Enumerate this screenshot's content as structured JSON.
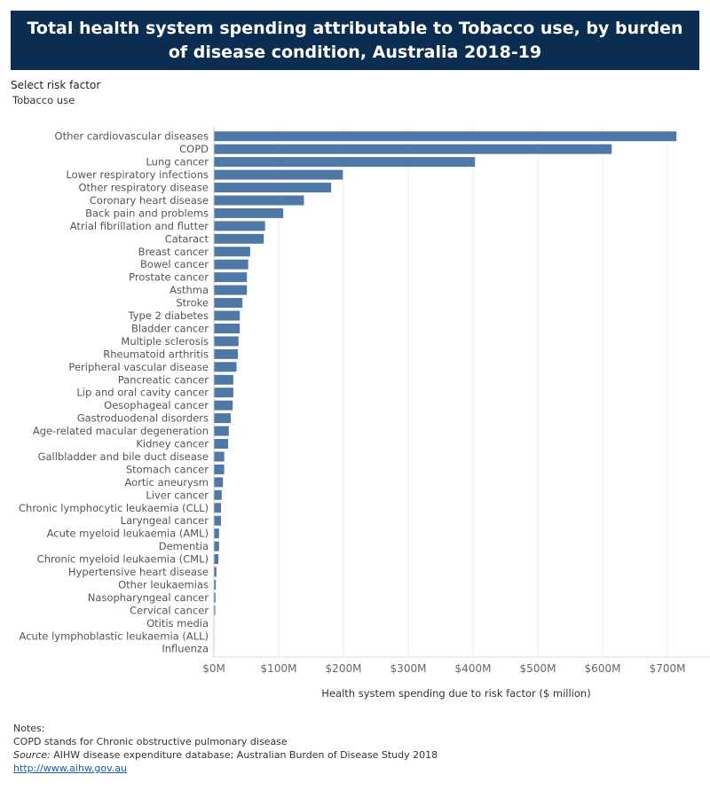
{
  "header": {
    "title": "Total health system spending attributable to Tobacco use, by burden of disease condition, Australia 2018-19"
  },
  "filter": {
    "label": "Select risk factor",
    "value": "Tobacco use"
  },
  "chart_data": {
    "type": "bar",
    "orientation": "horizontal",
    "title": "Total health system spending attributable to Tobacco use, by burden of disease condition, Australia 2018-19",
    "xlabel": "Health system spending due to risk factor ($ million)",
    "ylabel": "",
    "xlim": [
      0,
      735
    ],
    "grid": true,
    "x_ticks": [
      0,
      100,
      200,
      300,
      400,
      500,
      600,
      700
    ],
    "x_tick_labels": [
      "$0M",
      "$100M",
      "$200M",
      "$300M",
      "$400M",
      "$500M",
      "$600M",
      "$700M"
    ],
    "bar_color": "#4e79a7",
    "categories": [
      "Other cardiovascular diseases",
      "COPD",
      "Lung cancer",
      "Lower respiratory infections",
      "Other respiratory disease",
      "Coronary heart disease",
      "Back pain and problems",
      "Atrial fibrillation and flutter",
      "Cataract",
      "Breast cancer",
      "Bowel cancer",
      "Prostate cancer",
      "Asthma",
      "Stroke",
      "Type 2 diabetes",
      "Bladder cancer",
      "Multiple sclerosis",
      "Rheumatoid arthritis",
      "Peripheral vascular disease",
      "Pancreatic cancer",
      "Lip and oral cavity cancer",
      "Oesophageal cancer",
      "Gastroduodenal disorders",
      "Age-related macular degeneration",
      "Kidney cancer",
      "Gallbladder and bile duct disease",
      "Stomach cancer",
      "Aortic aneurysm",
      "Liver cancer",
      "Chronic lymphocytic leukaemia (CLL)",
      "Laryngeal cancer",
      "Acute myeloid leukaemia (AML)",
      "Dementia",
      "Chronic myeloid leukaemia (CML)",
      "Hypertensive heart disease",
      "Other leukaemias",
      "Nasopharyngeal cancer",
      "Cervical cancer",
      "Otitis media",
      "Acute lymphoblastic leukaemia (ALL)",
      "Influenza"
    ],
    "values": [
      714,
      614,
      403,
      199,
      181,
      139,
      107,
      79,
      77,
      56,
      53,
      51,
      51,
      44,
      40,
      40,
      38,
      37,
      35,
      30,
      30,
      29,
      26,
      23,
      22,
      16,
      16,
      14,
      12,
      11,
      11,
      8,
      8,
      7,
      4,
      3,
      2.5,
      2,
      0.5,
      0.3,
      0.2
    ]
  },
  "notes": {
    "heading": "Notes:",
    "copd_note": "COPD stands for Chronic obstructive pulmonary disease",
    "source_label": "Source:",
    "source_text": " AIHW disease expenditure database; Australian Burden of Disease Study 2018",
    "link": "http://www.aihw.gov.au"
  }
}
